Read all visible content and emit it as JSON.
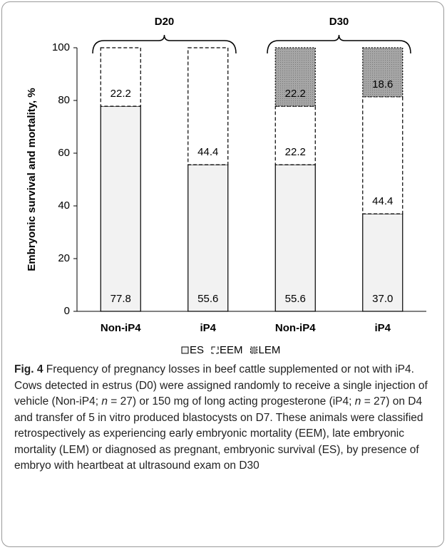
{
  "chart_data": {
    "type": "stacked_bar",
    "y_label": "Embryonic survival and mortality, %",
    "groups": [
      "D20",
      "D30"
    ],
    "categories": [
      "Non-iP4",
      "iP4",
      "Non-iP4",
      "iP4"
    ],
    "series": [
      {
        "name": "ES",
        "color": "#f2f2f2",
        "values": [
          77.8,
          55.6,
          55.6,
          37.0
        ],
        "value_labels": [
          "77.8",
          "55.6",
          "55.6",
          "37.0"
        ]
      },
      {
        "name": "EEM",
        "color": "#ffffff",
        "values": [
          22.2,
          44.4,
          22.2,
          44.4
        ]
      },
      {
        "name": "LEM",
        "color": "#a6a6a6",
        "values": [
          null,
          null,
          22.2,
          18.6
        ]
      }
    ],
    "ylim": [
      0,
      100
    ],
    "yticks": [
      0,
      20,
      40,
      60,
      80,
      100
    ],
    "grid": false,
    "legend": "bottom",
    "caption": {
      "label": "Fig. 4",
      "segments": [
        "Frequency of pregnancy losses in beef cattle supplemented or not with iP4. Cows detected in estrus (D0) were assigned randomly to receive a single injection of vehicle (Non-iP4; ",
        "n",
        " = 27) or 150 mg of long acting progesterone (iP4; ",
        "n",
        " = 27) on D4 and transfer of 5 in vitro produced blastocysts on D7. These animals were classified retrospectively as experiencing early embryonic mortality (EEM), late embryonic mortality (LEM) or diagnosed as pregnant, embryonic survival (ES), by presence of embryo with heartbeat at ultrasound exam on D30"
      ]
    }
  }
}
